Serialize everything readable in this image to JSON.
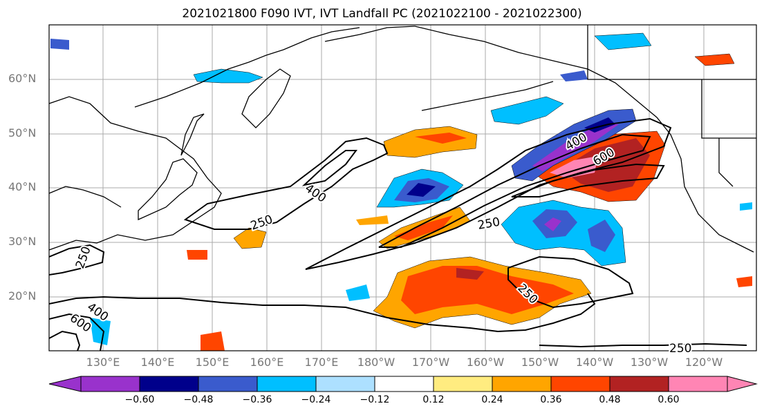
{
  "title": "2021021800 F090 IVT, IVT Landfall PC (2021022100 - 2021022300)",
  "map": {
    "lat_labels": [
      "60°N",
      "50°N",
      "40°N",
      "30°N",
      "20°N"
    ],
    "lon_labels": [
      "130°E",
      "140°E",
      "150°E",
      "160°E",
      "170°E",
      "180°W",
      "170°W",
      "160°W",
      "150°W",
      "140°W",
      "130°W",
      "120°W"
    ],
    "contour_labels": [
      "250",
      "400",
      "600"
    ],
    "colorbar": {
      "colors": [
        "#9932CC",
        "#00008B",
        "#3A5BCD",
        "#00BFFF",
        "#ADE0FF",
        "#FFFFFF",
        "#FFEC80",
        "#FFA500",
        "#FF4500",
        "#B22222",
        "#FF85B4"
      ],
      "ticks": [
        "−0.60",
        "−0.48",
        "−0.36",
        "−0.24",
        "−0.12",
        "0.12",
        "0.24",
        "0.36",
        "0.48",
        "0.60"
      ]
    }
  }
}
